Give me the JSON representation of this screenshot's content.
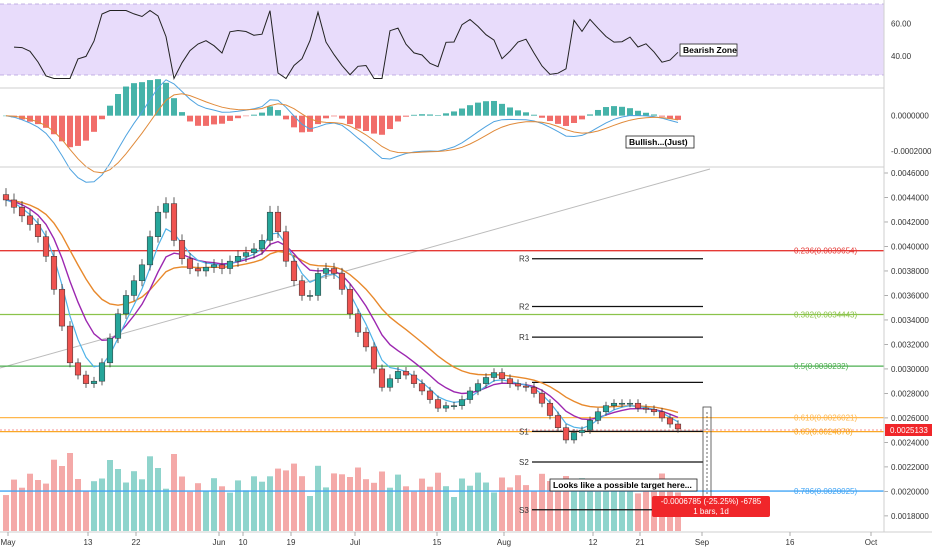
{
  "chart_data": {
    "type": "candlestick",
    "x_axis": {
      "tick_labels": [
        "May",
        "13",
        "22",
        "Jun",
        "10",
        "19",
        "Jul",
        "15",
        "Aug",
        "12",
        "21",
        "Sep",
        "16",
        "Oct"
      ]
    },
    "price_panel": {
      "y_axis": {
        "range": [
          0.00175,
          0.0046
        ],
        "ticks": [
          "0.0046000",
          "0.0044000",
          "0.0042000",
          "0.0040000",
          "0.0038000",
          "0.0036000",
          "0.0034000",
          "0.0032000",
          "0.0030000",
          "0.0028000",
          "0.0026000",
          "0.0024000",
          "0.0022000",
          "0.0020000",
          "0.0018000"
        ],
        "current_price_label": "0.0025133"
      },
      "close_series": [
        0.00438,
        0.00432,
        0.00425,
        0.00418,
        0.00408,
        0.00392,
        0.00365,
        0.00335,
        0.00305,
        0.00295,
        0.00288,
        0.0029,
        0.00305,
        0.00325,
        0.00345,
        0.0036,
        0.00372,
        0.00385,
        0.00408,
        0.00428,
        0.00435,
        0.00405,
        0.0039,
        0.00382,
        0.0038,
        0.00383,
        0.00385,
        0.00382,
        0.00388,
        0.00392,
        0.00395,
        0.00398,
        0.00405,
        0.00428,
        0.00412,
        0.00388,
        0.00372,
        0.0036,
        0.0036,
        0.00378,
        0.00382,
        0.00378,
        0.00365,
        0.00345,
        0.0033,
        0.00318,
        0.003,
        0.00285,
        0.00292,
        0.00298,
        0.00295,
        0.00288,
        0.00282,
        0.00275,
        0.00268,
        0.0027,
        0.0027,
        0.00275,
        0.00282,
        0.00288,
        0.00293,
        0.00297,
        0.00292,
        0.00288,
        0.00286,
        0.00285,
        0.0028,
        0.00272,
        0.00262,
        0.00252,
        0.00242,
        0.00248,
        0.0025,
        0.00258,
        0.00265,
        0.0027,
        0.00272,
        0.00272,
        0.00272,
        0.00268,
        0.00267,
        0.00265,
        0.0026,
        0.00255,
        0.00251
      ],
      "fibonacci_levels": [
        {
          "label": "0.236(0.0039654)",
          "value": 0.0039654,
          "color": "#e53935"
        },
        {
          "label": "0.382(0.0034443)",
          "value": 0.0034443,
          "color": "#8bc34a"
        },
        {
          "label": "0.5(0.0030232)",
          "value": 0.0030232,
          "color": "#4caf50"
        },
        {
          "label": "0.618(0.0026021)",
          "value": 0.0026021,
          "color": "#ffb74d"
        },
        {
          "label": "0.65(0.0024878)",
          "value": 0.0024878,
          "color": "#f9a825"
        },
        {
          "label": "0.786(0.0020025)",
          "value": 0.0020025,
          "color": "#42a5f5"
        }
      ],
      "pivot_levels": [
        {
          "label": "R3",
          "value": 0.0039
        },
        {
          "label": "R2",
          "value": 0.00351
        },
        {
          "label": "R1",
          "value": 0.00326
        },
        {
          "label": "",
          "value": 0.00289
        },
        {
          "label": "S1",
          "value": 0.00249
        },
        {
          "label": "S2",
          "value": 0.00224
        },
        {
          "label": "S3",
          "value": 0.00185
        }
      ],
      "annotations": [
        "Looks like a possible target here..."
      ],
      "measure_label": [
        "-0.0006785 (-25.25%) -6785",
        "1 bars, 1d"
      ]
    },
    "rsi_panel": {
      "y_axis": {
        "ticks": [
          "60.00",
          "40.00"
        ],
        "range": [
          22,
          72
        ]
      },
      "band": [
        30,
        70
      ],
      "annotation": "Bearish Zone"
    },
    "macd_panel": {
      "y_axis": {
        "ticks": [
          "0.0000000",
          "-0.0002000"
        ],
        "range": [
          -0.00028,
          0.00014
        ]
      },
      "annotation": "Bullish...(Just)"
    }
  }
}
